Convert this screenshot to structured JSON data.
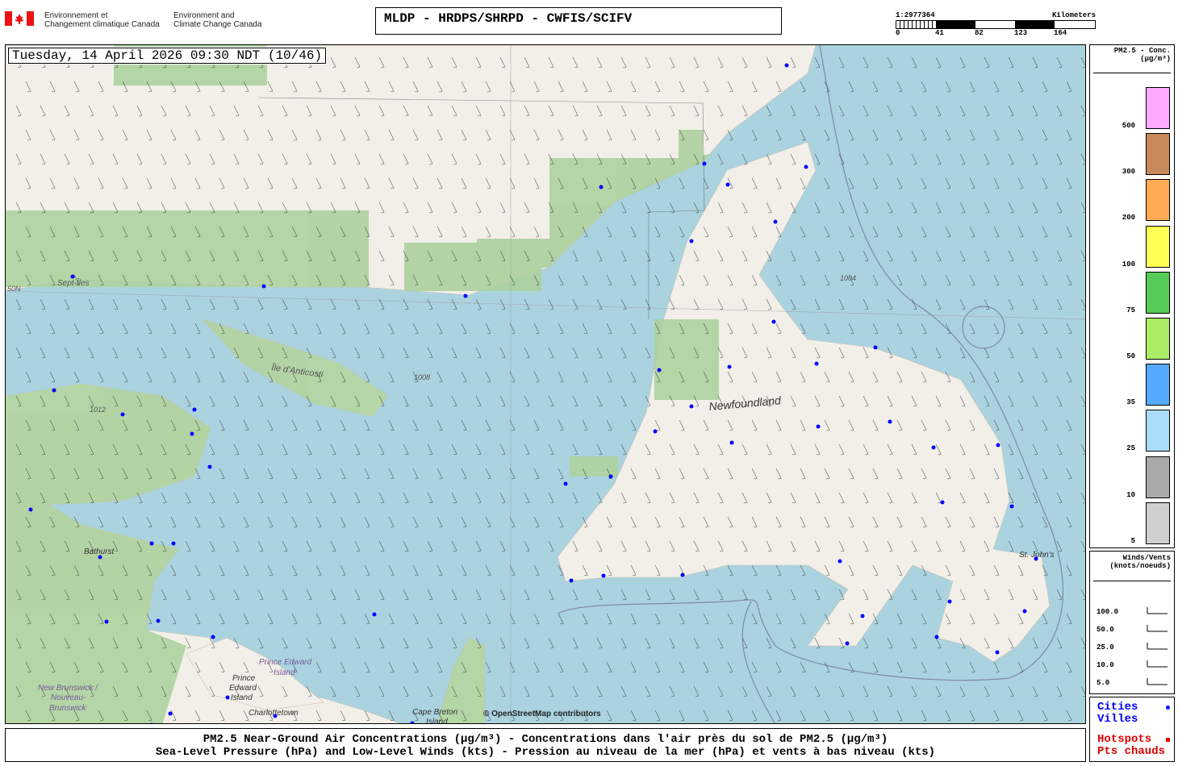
{
  "header": {
    "org_fr": [
      "Environnement et",
      "Changement climatique Canada"
    ],
    "org_en": [
      "Environment and",
      "Climate Change Canada"
    ],
    "title": "MLDP - HRDPS/SHRPD - CWFIS/SCIFV"
  },
  "scale": {
    "ratio": "1:2977364",
    "unit": "Kilometers",
    "ticks": [
      "0",
      "41",
      "82",
      "123",
      "164"
    ]
  },
  "map": {
    "datetime": "Tuesday, 14 April 2026 09:30 NDT (10/46)",
    "attribution": "© OpenStreetMap contributors",
    "labels": {
      "sept_iles": "Sept-Îles",
      "anticosti": "Île d'Anticosti",
      "newfoundland": "Newfoundland",
      "bathurst": "Bathurst",
      "st_johns": "St. John's",
      "pei1": "Prince Edward",
      "pei2": "Island",
      "pei_b1": "Prince",
      "pei_b2": "Edward",
      "pei_b3": "Island",
      "charlottetown": "Charlottetown",
      "cape_breton1": "Cape Breton",
      "cape_breton2": "Island",
      "nb1": "New Brunswick /",
      "nb2": "Nouveau-",
      "nb3": "Brunswick",
      "lat50": "50N"
    },
    "isobars": [
      "1004",
      "1008",
      "1012"
    ],
    "colors": {
      "ocean": "#aad3df",
      "land": "#f2efe9",
      "forest": "#add19e",
      "city": "#0000ff"
    }
  },
  "pm_legend": {
    "title": "PM2.5 - Conc.",
    "unit": "(µg/m³)",
    "levels": [
      {
        "label": "500",
        "color": "#ffaaff"
      },
      {
        "label": "300",
        "color": "#c8895a"
      },
      {
        "label": "200",
        "color": "#ffaa55"
      },
      {
        "label": "100",
        "color": "#ffff55"
      },
      {
        "label": "75",
        "color": "#55cc55"
      },
      {
        "label": "50",
        "color": "#aaee66"
      },
      {
        "label": "35",
        "color": "#55aaff"
      },
      {
        "label": "25",
        "color": "#aaddf8"
      },
      {
        "label": "10",
        "color": "#aaaaaa"
      },
      {
        "label": "5",
        "color": "#d0d0d0"
      }
    ]
  },
  "wind_legend": {
    "title": "Winds/Vents",
    "unit": "(knots/noeuds)",
    "speeds": [
      "100.0",
      "50.0",
      "25.0",
      "10.0",
      "5.0"
    ]
  },
  "point_legend": {
    "cities": "Cities",
    "villes": "Villes",
    "hotspots": "Hotspots",
    "pts_chauds": "Pts chauds"
  },
  "caption": {
    "line1": "PM2.5 Near-Ground Air Concentrations (µg/m³) - Concentrations dans l'air près du sol de PM2.5 (µg/m³)",
    "line2": "Sea-Level Pressure (hPa) and Low-Level Winds (kts) - Pression au niveau de la mer (hPa) et vents à bas niveau (kts)"
  }
}
